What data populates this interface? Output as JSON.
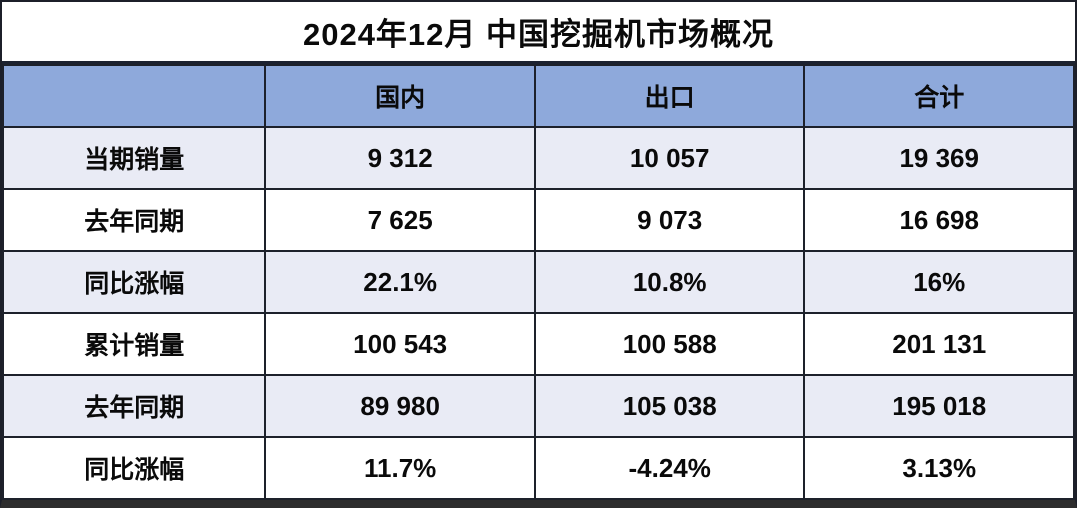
{
  "title": "2024年12月 中国挖掘机市场概况",
  "table": {
    "headers": [
      "",
      "国内",
      "出口",
      "合计"
    ],
    "rows": [
      {
        "label": "当期销量",
        "values": [
          "9 312",
          "10 057",
          "19 369"
        ]
      },
      {
        "label": "去年同期",
        "values": [
          "7 625",
          "9 073",
          "16 698"
        ]
      },
      {
        "label": "同比涨幅",
        "values": [
          "22.1%",
          "10.8%",
          "16%"
        ]
      },
      {
        "label": "累计销量",
        "values": [
          "100 543",
          "100 588",
          "201 131"
        ]
      },
      {
        "label": "去年同期",
        "values": [
          "89 980",
          "105 038",
          "195 018"
        ]
      },
      {
        "label": "同比涨幅",
        "values": [
          "11.7%",
          "-4.24%",
          "3.13%"
        ]
      }
    ]
  },
  "colors": {
    "header_bg": "#8EA9DB",
    "row_tint_bg": "#E9EBF5",
    "row_white_bg": "#FFFFFF",
    "border": "#1D212B",
    "bottom_bar": "#2D2D2D",
    "text": "#0A0A0A"
  },
  "chart_data": {
    "type": "table",
    "title": "2024年12月 中国挖掘机市场概况",
    "columns": [
      "国内",
      "出口",
      "合计"
    ],
    "row_labels": [
      "当期销量",
      "去年同期",
      "同比涨幅",
      "累计销量",
      "去年同期",
      "同比涨幅"
    ],
    "series": [
      {
        "name": "国内",
        "values": [
          9312,
          7625,
          "22.1%",
          100543,
          89980,
          "11.7%"
        ]
      },
      {
        "name": "出口",
        "values": [
          10057,
          9073,
          "10.8%",
          100588,
          105038,
          "-4.24%"
        ]
      },
      {
        "name": "合计",
        "values": [
          19369,
          16698,
          "16%",
          201131,
          195018,
          "3.13%"
        ]
      }
    ]
  }
}
